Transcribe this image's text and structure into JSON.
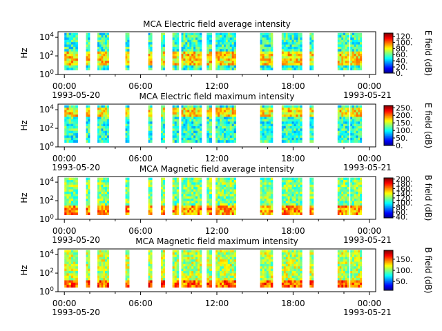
{
  "figure": {
    "time_start_label": "1993-05-20",
    "time_end_label": "1993-05-21"
  },
  "chart_data": [
    {
      "type": "heatmap",
      "title": "MCA  Electric field average intensity",
      "ylabel": "Hz",
      "y_scale": "log",
      "ylim": [
        1,
        40000
      ],
      "y_ticks": [
        "10^0",
        "10^2",
        "10^4"
      ],
      "x_ticks": [
        "00:00",
        "06:00",
        "12:00",
        "18:00",
        "00:00"
      ],
      "x_range_hours": [
        -0.5,
        24.5
      ],
      "colorbar": {
        "label": "E field (dB)",
        "ticks": [
          "0.",
          "20.",
          "40.",
          "60.",
          "80.",
          "100.",
          "120."
        ],
        "range": [
          0,
          130
        ]
      },
      "data_intervals_hours": [
        [
          0,
          1.05
        ],
        [
          1.7,
          2.0
        ],
        [
          2.6,
          3.5
        ],
        [
          4.8,
          5.1
        ],
        [
          6.6,
          6.9
        ],
        [
          7.6,
          7.9
        ],
        [
          8.5,
          9.0
        ],
        [
          9.2,
          10.8
        ],
        [
          11.2,
          11.6
        ],
        [
          11.9,
          13.5
        ],
        [
          15.4,
          16.4
        ],
        [
          17.1,
          18.7
        ],
        [
          19.3,
          19.6
        ],
        [
          21.5,
          22.4
        ],
        [
          22.5,
          23.4
        ]
      ],
      "dominant_level": 55,
      "high_level_band_hz": [
        10,
        300
      ]
    },
    {
      "type": "heatmap",
      "title": "MCA  Electric field maximum intensity",
      "ylabel": "Hz",
      "y_scale": "log",
      "ylim": [
        1,
        40000
      ],
      "y_ticks": [
        "10^0",
        "10^2",
        "10^4"
      ],
      "x_ticks": [
        "00:00",
        "06:00",
        "12:00",
        "18:00",
        "00:00"
      ],
      "x_range_hours": [
        -0.5,
        24.5
      ],
      "colorbar": {
        "label": "E field (dB)",
        "ticks": [
          "0.",
          "50.",
          "100.",
          "150.",
          "200.",
          "250."
        ],
        "range": [
          0,
          265
        ]
      },
      "data_intervals_hours": [
        [
          0,
          1.05
        ],
        [
          1.7,
          2.0
        ],
        [
          2.6,
          3.5
        ],
        [
          4.8,
          5.1
        ],
        [
          6.6,
          6.9
        ],
        [
          7.6,
          7.9
        ],
        [
          8.5,
          9.0
        ],
        [
          9.2,
          10.8
        ],
        [
          11.2,
          11.6
        ],
        [
          11.9,
          13.5
        ],
        [
          15.4,
          16.4
        ],
        [
          17.1,
          18.7
        ],
        [
          19.3,
          19.6
        ],
        [
          21.5,
          22.4
        ],
        [
          22.5,
          23.4
        ]
      ],
      "dominant_level": 110,
      "high_level_band_hz": [
        2000,
        20000
      ]
    },
    {
      "type": "heatmap",
      "title": "MCA  Magnetic field average intensity",
      "ylabel": "Hz",
      "y_scale": "log",
      "ylim": [
        1,
        40000
      ],
      "y_ticks": [
        "10^0",
        "10^2",
        "10^4"
      ],
      "x_ticks": [
        "00:00",
        "06:00",
        "12:00",
        "18:00",
        "00:00"
      ],
      "x_range_hours": [
        -0.5,
        24.5
      ],
      "colorbar": {
        "label": "B field (dB)",
        "ticks": [
          "40.",
          "60.",
          "80.",
          "100.",
          "120.",
          "140.",
          "160.",
          "180.",
          "200."
        ],
        "range": [
          35,
          205
        ]
      },
      "data_intervals_hours": [
        [
          0,
          1.05
        ],
        [
          1.7,
          2.0
        ],
        [
          2.6,
          3.5
        ],
        [
          4.8,
          5.1
        ],
        [
          6.6,
          6.9
        ],
        [
          7.6,
          7.9
        ],
        [
          8.5,
          9.0
        ],
        [
          9.2,
          10.8
        ],
        [
          11.2,
          11.6
        ],
        [
          11.9,
          13.5
        ],
        [
          15.4,
          16.4
        ],
        [
          17.1,
          18.7
        ],
        [
          19.3,
          19.6
        ],
        [
          21.5,
          22.4
        ],
        [
          22.5,
          23.4
        ]
      ],
      "dominant_level": 120,
      "high_level_band_hz": [
        1,
        30
      ]
    },
    {
      "type": "heatmap",
      "title": "MCA  Magnetic field maximum intensity",
      "ylabel": "Hz",
      "y_scale": "log",
      "ylim": [
        1,
        40000
      ],
      "y_ticks": [
        "10^0",
        "10^2",
        "10^4"
      ],
      "x_ticks": [
        "00:00",
        "06:00",
        "12:00",
        "18:00",
        "00:00"
      ],
      "x_range_hours": [
        -0.5,
        24.5
      ],
      "colorbar": {
        "label": "B field (dB)",
        "ticks": [
          "50.",
          "100.",
          "150."
        ],
        "range": [
          10,
          190
        ]
      },
      "data_intervals_hours": [
        [
          0,
          1.05
        ],
        [
          1.7,
          2.0
        ],
        [
          2.6,
          3.5
        ],
        [
          4.8,
          5.1
        ],
        [
          6.6,
          6.9
        ],
        [
          7.6,
          7.9
        ],
        [
          8.5,
          9.0
        ],
        [
          9.2,
          10.8
        ],
        [
          11.2,
          11.6
        ],
        [
          11.9,
          13.5
        ],
        [
          15.4,
          16.4
        ],
        [
          17.1,
          18.7
        ],
        [
          19.3,
          19.6
        ],
        [
          21.5,
          22.4
        ],
        [
          22.5,
          23.4
        ]
      ],
      "dominant_level": 110,
      "high_level_band_hz": [
        1,
        20
      ]
    }
  ]
}
